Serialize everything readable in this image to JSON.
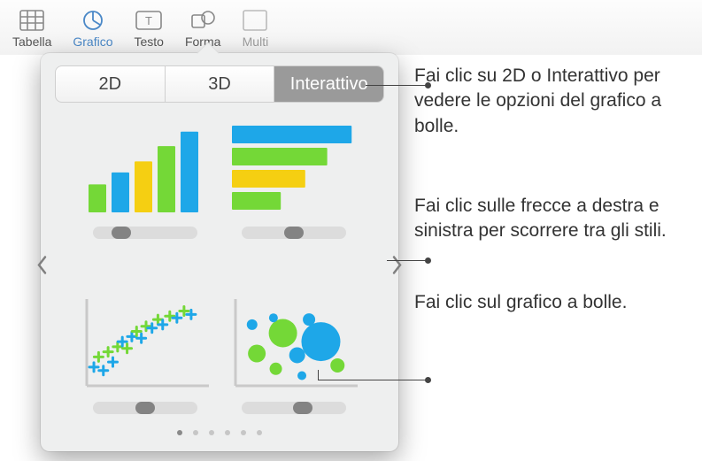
{
  "toolbar": {
    "items": [
      {
        "label": "Tabella"
      },
      {
        "label": "Grafico"
      },
      {
        "label": "Testo"
      },
      {
        "label": "Forma"
      },
      {
        "label": "Multi"
      }
    ]
  },
  "popover": {
    "segments": {
      "a": "2D",
      "b": "3D",
      "c": "Interattivo",
      "active_index": 2
    },
    "colors": {
      "green": "#74d837",
      "blue": "#1ea7e8",
      "yellow": "#f5cf12",
      "axis": "#c9c9c9",
      "slider_track": "#dcdcdc",
      "slider_handle": "#838383"
    },
    "thumbs": {
      "vbar": {
        "type": "bar",
        "heights": [
          0.33,
          0.47,
          0.6,
          0.78,
          0.95
        ],
        "bar_colors": [
          "#74d837",
          "#1ea7e8",
          "#f5cf12",
          "#74d837",
          "#1ea7e8"
        ],
        "slider_pos": 0.22
      },
      "hbar": {
        "type": "hbar",
        "lengths": [
          0.98,
          0.78,
          0.6,
          0.4
        ],
        "bar_colors": [
          "#1ea7e8",
          "#74d837",
          "#f5cf12",
          "#74d837"
        ],
        "slider_pos": 0.5
      },
      "scatter": {
        "type": "scatter",
        "points": [
          {
            "x": 0.06,
            "y": 0.22,
            "c": "#1ea7e8"
          },
          {
            "x": 0.1,
            "y": 0.34,
            "c": "#74d837"
          },
          {
            "x": 0.14,
            "y": 0.18,
            "c": "#1ea7e8"
          },
          {
            "x": 0.18,
            "y": 0.4,
            "c": "#74d837"
          },
          {
            "x": 0.22,
            "y": 0.28,
            "c": "#1ea7e8"
          },
          {
            "x": 0.26,
            "y": 0.46,
            "c": "#74d837"
          },
          {
            "x": 0.3,
            "y": 0.52,
            "c": "#1ea7e8"
          },
          {
            "x": 0.34,
            "y": 0.44,
            "c": "#74d837"
          },
          {
            "x": 0.38,
            "y": 0.58,
            "c": "#1ea7e8"
          },
          {
            "x": 0.42,
            "y": 0.64,
            "c": "#74d837"
          },
          {
            "x": 0.46,
            "y": 0.56,
            "c": "#1ea7e8"
          },
          {
            "x": 0.5,
            "y": 0.7,
            "c": "#74d837"
          },
          {
            "x": 0.55,
            "y": 0.68,
            "c": "#1ea7e8"
          },
          {
            "x": 0.6,
            "y": 0.78,
            "c": "#74d837"
          },
          {
            "x": 0.64,
            "y": 0.72,
            "c": "#1ea7e8"
          },
          {
            "x": 0.7,
            "y": 0.82,
            "c": "#74d837"
          },
          {
            "x": 0.76,
            "y": 0.8,
            "c": "#1ea7e8"
          },
          {
            "x": 0.82,
            "y": 0.88,
            "c": "#74d837"
          },
          {
            "x": 0.88,
            "y": 0.84,
            "c": "#1ea7e8"
          }
        ],
        "slider_pos": 0.5
      },
      "bubble": {
        "type": "bubble",
        "bubbles": [
          {
            "x": 0.18,
            "y": 0.38,
            "r": 10,
            "c": "#74d837"
          },
          {
            "x": 0.14,
            "y": 0.72,
            "r": 6,
            "c": "#1ea7e8"
          },
          {
            "x": 0.34,
            "y": 0.2,
            "r": 7,
            "c": "#74d837"
          },
          {
            "x": 0.4,
            "y": 0.62,
            "r": 16,
            "c": "#74d837"
          },
          {
            "x": 0.32,
            "y": 0.8,
            "r": 5,
            "c": "#1ea7e8"
          },
          {
            "x": 0.52,
            "y": 0.36,
            "r": 9,
            "c": "#1ea7e8"
          },
          {
            "x": 0.62,
            "y": 0.78,
            "r": 7,
            "c": "#1ea7e8"
          },
          {
            "x": 0.72,
            "y": 0.52,
            "r": 22,
            "c": "#1ea7e8"
          },
          {
            "x": 0.86,
            "y": 0.24,
            "r": 8,
            "c": "#74d837"
          },
          {
            "x": 0.56,
            "y": 0.12,
            "r": 5,
            "c": "#1ea7e8"
          }
        ],
        "slider_pos": 0.6
      }
    },
    "page_dots": {
      "count": 6,
      "active": 0
    }
  },
  "callouts": {
    "a": "Fai clic su 2D o Interattivo per vedere le opzioni del grafico a bolle.",
    "b": "Fai clic sulle frecce a destra e sinistra per scorrere tra gli stili.",
    "c": "Fai clic sul grafico a bolle."
  }
}
